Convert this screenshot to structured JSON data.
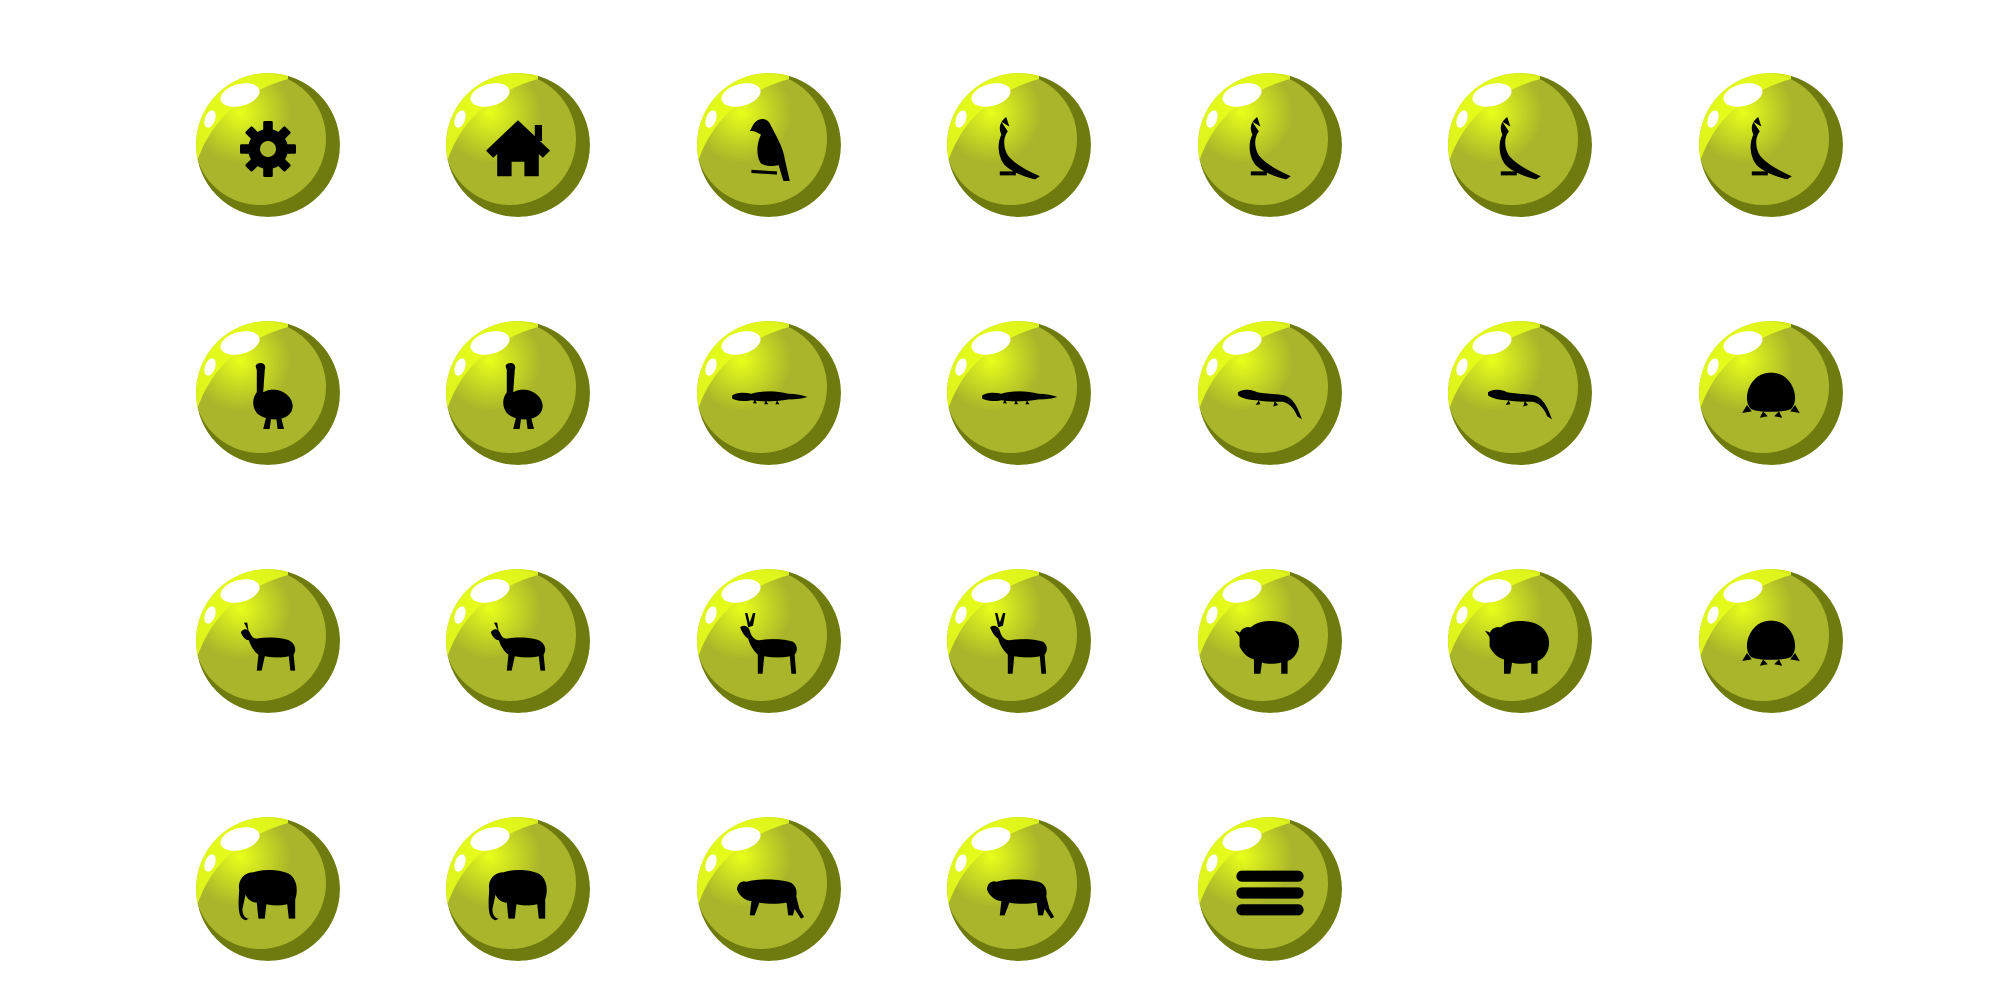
{
  "theme": {
    "ball_light": "#e8ff1a",
    "ball_mid": "#a9b52a",
    "ball_dark": "#6f7a0f",
    "highlight": "#ffffff",
    "icon": "#000000",
    "background": "#ffffff"
  },
  "rows": [
    [
      "gear-icon",
      "home-icon",
      "eagle-icon",
      "cockatoo-icon",
      "cockatoo-icon",
      "cockatoo-icon",
      "cockatoo-icon"
    ],
    [
      "cassowary-icon",
      "cassowary-icon",
      "crocodile-icon",
      "crocodile-icon",
      "monitor-lizard-icon",
      "monitor-lizard-icon",
      "turtle-icon"
    ],
    [
      "antelope-icon",
      "antelope-icon",
      "deer-icon",
      "deer-icon",
      "bison-icon",
      "bison-icon",
      "turtle-icon"
    ],
    [
      "elephant-icon",
      "elephant-icon",
      "tiger-icon",
      "tiger-icon",
      "menu-icon"
    ]
  ]
}
